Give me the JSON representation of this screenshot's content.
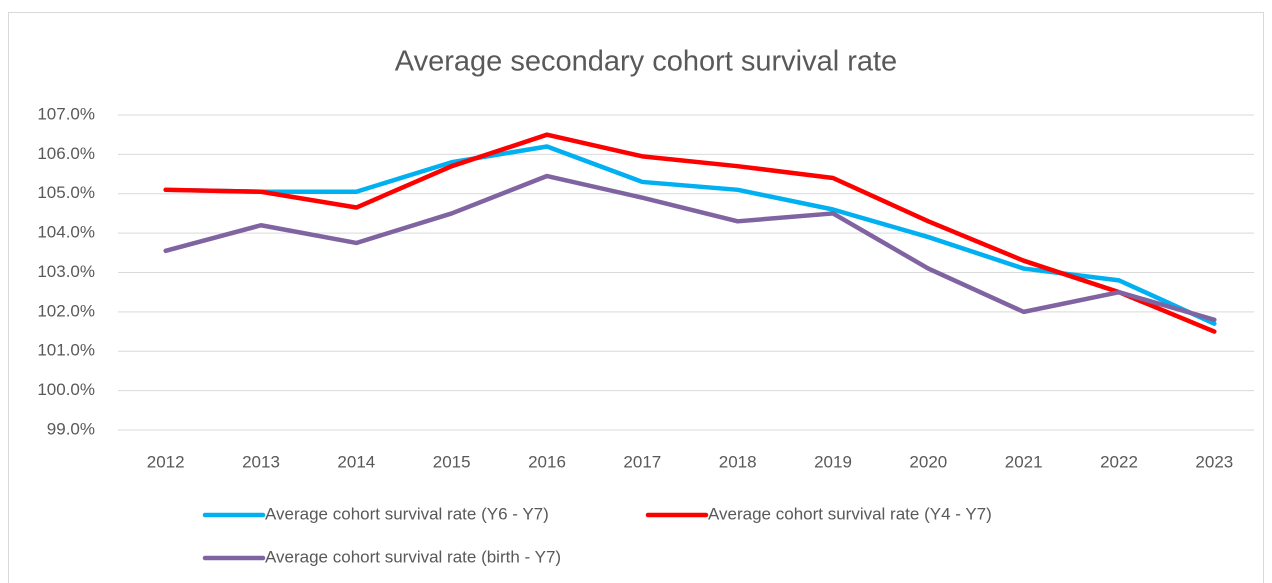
{
  "chart_data": {
    "type": "line",
    "title": "Average secondary cohort survival rate",
    "categories": [
      "2012",
      "2013",
      "2014",
      "2015",
      "2016",
      "2017",
      "2018",
      "2019",
      "2020",
      "2021",
      "2022",
      "2023"
    ],
    "series": [
      {
        "name": "Average cohort survival rate (Y6 - Y7)",
        "color": "#00b0f0",
        "values": [
          105.1,
          105.05,
          105.05,
          105.8,
          106.2,
          105.3,
          105.1,
          104.6,
          103.9,
          103.1,
          102.8,
          101.7
        ]
      },
      {
        "name": "Average cohort survival rate (Y4 - Y7)",
        "color": "#ff0000",
        "values": [
          105.1,
          105.05,
          104.65,
          105.7,
          106.5,
          105.95,
          105.7,
          105.4,
          104.3,
          103.3,
          102.5,
          101.5
        ]
      },
      {
        "name": "Average cohort survival rate (birth - Y7)",
        "color": "#8064a2",
        "values": [
          103.55,
          104.2,
          103.75,
          104.5,
          105.45,
          104.9,
          104.3,
          104.5,
          103.1,
          102.0,
          102.5,
          101.8
        ]
      }
    ],
    "ylim": [
      99,
      107
    ],
    "yticks": [
      {
        "value": 99,
        "label": "99.0%"
      },
      {
        "value": 100,
        "label": "100.0%"
      },
      {
        "value": 101,
        "label": "101.0%"
      },
      {
        "value": 102,
        "label": "102.0%"
      },
      {
        "value": 103,
        "label": "103.0%"
      },
      {
        "value": 104,
        "label": "104.0%"
      },
      {
        "value": 105,
        "label": "105.0%"
      },
      {
        "value": 106,
        "label": "106.0%"
      },
      {
        "value": 107,
        "label": "107.0%"
      }
    ],
    "grid": true,
    "legend": "bottom"
  }
}
